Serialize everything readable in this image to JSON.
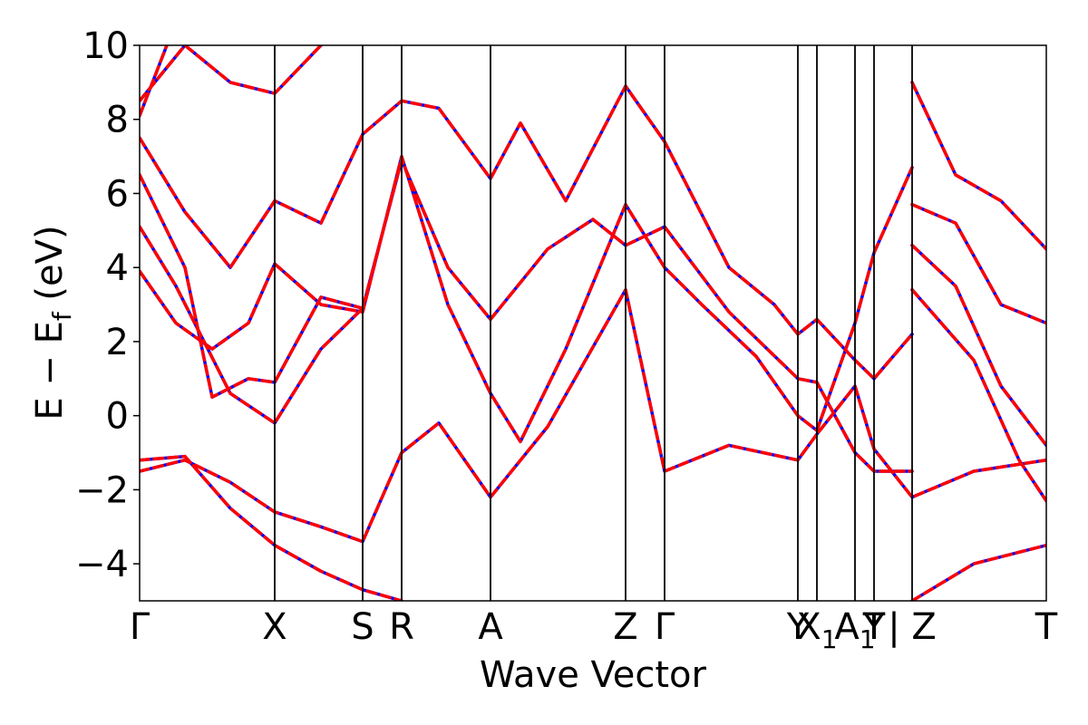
{
  "chart_data": {
    "type": "line",
    "xlabel": "Wave Vector",
    "ylabel": "E − E",
    "ylabel_sub": "f",
    "ylabel_unit": " (eV)",
    "ylim": [
      -5,
      10
    ],
    "yticks": [
      -4,
      -2,
      0,
      2,
      4,
      6,
      8,
      10
    ],
    "ytick_labels": [
      "−4",
      "−2",
      "0",
      "2",
      "4",
      "6",
      "8",
      "10"
    ],
    "xlim": [
      0,
      1
    ],
    "grid": false,
    "legend": "none",
    "kpoints": [
      {
        "pos": 0.0,
        "label": "Γ"
      },
      {
        "pos": 0.149,
        "label": "X"
      },
      {
        "pos": 0.246,
        "label": "S"
      },
      {
        "pos": 0.289,
        "label": "R"
      },
      {
        "pos": 0.387,
        "label": "A"
      },
      {
        "pos": 0.536,
        "label": "Z"
      },
      {
        "pos": 0.579,
        "label": "Γ"
      },
      {
        "pos": 0.726,
        "label": "Y"
      },
      {
        "pos": 0.747,
        "label": "X",
        "sub": "1"
      },
      {
        "pos": 0.789,
        "label": "A",
        "sub": "1"
      },
      {
        "pos": 0.81,
        "label": "T"
      },
      {
        "pos": 0.81,
        "label": "Y"
      },
      {
        "pos": 0.852,
        "label": "| Z"
      },
      {
        "pos": 1.0,
        "label": "T"
      }
    ],
    "series": [
      {
        "color": "#0000ff",
        "style": "solid",
        "width": 3.5,
        "bands": [
          [
            [
              0,
              -1.5
            ],
            [
              0.05,
              -1.2
            ],
            [
              0.1,
              -1.8
            ],
            [
              0.149,
              -2.6
            ],
            [
              0.2,
              -3.0
            ],
            [
              0.246,
              -3.4
            ],
            [
              0.289,
              -1.0
            ],
            [
              0.33,
              -0.2
            ],
            [
              0.387,
              -2.2
            ],
            [
              0.45,
              -0.3
            ],
            [
              0.536,
              3.4
            ],
            [
              0.579,
              -1.5
            ],
            [
              0.65,
              -0.8
            ],
            [
              0.726,
              -1.2
            ],
            [
              0.747,
              -0.5
            ],
            [
              0.789,
              0.8
            ],
            [
              0.81,
              -0.9
            ],
            [
              0.852,
              -2.2
            ],
            [
              0.92,
              -1.5
            ],
            [
              1.0,
              -1.2
            ]
          ],
          [
            [
              0,
              -1.2
            ],
            [
              0.05,
              -1.1
            ],
            [
              0.1,
              -2.5
            ],
            [
              0.149,
              -3.5
            ],
            [
              0.2,
              -4.2
            ],
            [
              0.246,
              -4.7
            ],
            [
              0.289,
              -5.0
            ]
          ],
          [
            [
              0,
              3.9
            ],
            [
              0.04,
              2.5
            ],
            [
              0.08,
              1.8
            ],
            [
              0.12,
              2.5
            ],
            [
              0.149,
              4.1
            ],
            [
              0.2,
              3.0
            ],
            [
              0.246,
              2.8
            ],
            [
              0.289,
              7.0
            ],
            [
              0.34,
              3.0
            ],
            [
              0.387,
              0.6
            ],
            [
              0.42,
              -0.7
            ],
            [
              0.47,
              1.8
            ],
            [
              0.536,
              5.7
            ],
            [
              0.579,
              4.0
            ],
            [
              0.62,
              3.0
            ],
            [
              0.68,
              1.6
            ],
            [
              0.726,
              0.0
            ],
            [
              0.747,
              -0.4
            ],
            [
              0.789,
              2.5
            ],
            [
              0.81,
              4.4
            ],
            [
              0.852,
              6.7
            ]
          ],
          [
            [
              0,
              5.1
            ],
            [
              0.04,
              3.5
            ],
            [
              0.1,
              0.6
            ],
            [
              0.149,
              -0.2
            ],
            [
              0.2,
              1.8
            ],
            [
              0.246,
              2.9
            ],
            [
              0.289,
              6.9
            ],
            [
              0.34,
              4.0
            ],
            [
              0.387,
              2.6
            ],
            [
              0.45,
              4.5
            ],
            [
              0.5,
              5.3
            ],
            [
              0.536,
              4.6
            ],
            [
              0.579,
              5.1
            ],
            [
              0.65,
              2.8
            ],
            [
              0.726,
              1.0
            ],
            [
              0.747,
              0.9
            ],
            [
              0.789,
              -1.0
            ],
            [
              0.81,
              -1.5
            ],
            [
              0.852,
              -1.5
            ]
          ],
          [
            [
              0,
              6.5
            ],
            [
              0.05,
              4.0
            ],
            [
              0.08,
              0.5
            ],
            [
              0.12,
              1.0
            ],
            [
              0.149,
              0.9
            ],
            [
              0.2,
              3.2
            ],
            [
              0.246,
              2.9
            ]
          ],
          [
            [
              0,
              7.5
            ],
            [
              0.05,
              5.5
            ],
            [
              0.1,
              4.0
            ],
            [
              0.149,
              5.8
            ],
            [
              0.2,
              5.2
            ],
            [
              0.246,
              7.6
            ],
            [
              0.289,
              8.5
            ],
            [
              0.33,
              8.3
            ],
            [
              0.387,
              6.4
            ],
            [
              0.42,
              7.9
            ],
            [
              0.47,
              5.8
            ],
            [
              0.536,
              8.9
            ],
            [
              0.579,
              7.4
            ],
            [
              0.65,
              4.0
            ],
            [
              0.7,
              3.0
            ],
            [
              0.726,
              2.2
            ],
            [
              0.747,
              2.6
            ],
            [
              0.789,
              1.5
            ],
            [
              0.81,
              1.0
            ],
            [
              0.852,
              2.2
            ]
          ],
          [
            [
              0,
              8.1
            ],
            [
              0.03,
              10.0
            ]
          ],
          [
            [
              0,
              8.5
            ],
            [
              0.05,
              10.0
            ],
            [
              0.1,
              9.0
            ],
            [
              0.149,
              8.7
            ],
            [
              0.2,
              10.0
            ]
          ],
          [
            [
              0.852,
              9.0
            ],
            [
              0.9,
              6.5
            ],
            [
              0.95,
              5.8
            ],
            [
              1.0,
              4.5
            ]
          ],
          [
            [
              0.852,
              5.7
            ],
            [
              0.9,
              5.2
            ],
            [
              0.95,
              3.0
            ],
            [
              1.0,
              2.5
            ]
          ],
          [
            [
              0.852,
              4.6
            ],
            [
              0.9,
              3.5
            ],
            [
              0.95,
              0.8
            ],
            [
              1.0,
              -0.8
            ]
          ],
          [
            [
              0.852,
              3.4
            ],
            [
              0.92,
              1.5
            ],
            [
              0.97,
              -1.2
            ],
            [
              1.0,
              -2.3
            ]
          ],
          [
            [
              0.852,
              -5.0
            ],
            [
              0.92,
              -4.0
            ],
            [
              1.0,
              -3.5
            ]
          ]
        ]
      },
      {
        "color": "#ff0000",
        "style": "dashed",
        "width": 3.5,
        "bands": [
          [
            [
              0,
              -1.5
            ],
            [
              0.05,
              -1.2
            ],
            [
              0.1,
              -1.8
            ],
            [
              0.149,
              -2.6
            ],
            [
              0.2,
              -3.0
            ],
            [
              0.246,
              -3.4
            ],
            [
              0.289,
              -1.0
            ],
            [
              0.33,
              -0.2
            ],
            [
              0.387,
              -2.2
            ],
            [
              0.45,
              -0.3
            ],
            [
              0.536,
              3.4
            ],
            [
              0.579,
              -1.5
            ],
            [
              0.65,
              -0.8
            ],
            [
              0.726,
              -1.2
            ],
            [
              0.747,
              -0.5
            ],
            [
              0.789,
              0.8
            ],
            [
              0.81,
              -0.9
            ],
            [
              0.852,
              -2.2
            ],
            [
              0.92,
              -1.5
            ],
            [
              1.0,
              -1.2
            ]
          ],
          [
            [
              0,
              -1.2
            ],
            [
              0.05,
              -1.1
            ],
            [
              0.1,
              -2.5
            ],
            [
              0.149,
              -3.5
            ],
            [
              0.2,
              -4.2
            ],
            [
              0.246,
              -4.7
            ],
            [
              0.289,
              -5.0
            ]
          ],
          [
            [
              0,
              3.9
            ],
            [
              0.04,
              2.5
            ],
            [
              0.08,
              1.8
            ],
            [
              0.12,
              2.5
            ],
            [
              0.149,
              4.1
            ],
            [
              0.2,
              3.0
            ],
            [
              0.246,
              2.8
            ],
            [
              0.289,
              7.0
            ],
            [
              0.34,
              3.0
            ],
            [
              0.387,
              0.6
            ],
            [
              0.42,
              -0.7
            ],
            [
              0.47,
              1.8
            ],
            [
              0.536,
              5.7
            ],
            [
              0.579,
              4.0
            ],
            [
              0.62,
              3.0
            ],
            [
              0.68,
              1.6
            ],
            [
              0.726,
              0.0
            ],
            [
              0.747,
              -0.4
            ],
            [
              0.789,
              2.5
            ],
            [
              0.81,
              4.4
            ],
            [
              0.852,
              6.7
            ]
          ],
          [
            [
              0,
              5.1
            ],
            [
              0.04,
              3.5
            ],
            [
              0.1,
              0.6
            ],
            [
              0.149,
              -0.2
            ],
            [
              0.2,
              1.8
            ],
            [
              0.246,
              2.9
            ],
            [
              0.289,
              6.9
            ],
            [
              0.34,
              4.0
            ],
            [
              0.387,
              2.6
            ],
            [
              0.45,
              4.5
            ],
            [
              0.5,
              5.3
            ],
            [
              0.536,
              4.6
            ],
            [
              0.579,
              5.1
            ],
            [
              0.65,
              2.8
            ],
            [
              0.726,
              1.0
            ],
            [
              0.747,
              0.9
            ],
            [
              0.789,
              -1.0
            ],
            [
              0.81,
              -1.5
            ],
            [
              0.852,
              -1.5
            ]
          ],
          [
            [
              0,
              6.5
            ],
            [
              0.05,
              4.0
            ],
            [
              0.08,
              0.5
            ],
            [
              0.12,
              1.0
            ],
            [
              0.149,
              0.9
            ],
            [
              0.2,
              3.2
            ],
            [
              0.246,
              2.9
            ]
          ],
          [
            [
              0,
              7.5
            ],
            [
              0.05,
              5.5
            ],
            [
              0.1,
              4.0
            ],
            [
              0.149,
              5.8
            ],
            [
              0.2,
              5.2
            ],
            [
              0.246,
              7.6
            ],
            [
              0.289,
              8.5
            ],
            [
              0.33,
              8.3
            ],
            [
              0.387,
              6.4
            ],
            [
              0.42,
              7.9
            ],
            [
              0.47,
              5.8
            ],
            [
              0.536,
              8.9
            ],
            [
              0.579,
              7.4
            ],
            [
              0.65,
              4.0
            ],
            [
              0.7,
              3.0
            ],
            [
              0.726,
              2.2
            ],
            [
              0.747,
              2.6
            ],
            [
              0.789,
              1.5
            ],
            [
              0.81,
              1.0
            ],
            [
              0.852,
              2.2
            ]
          ],
          [
            [
              0,
              8.1
            ],
            [
              0.03,
              10.0
            ]
          ],
          [
            [
              0,
              8.5
            ],
            [
              0.05,
              10.0
            ],
            [
              0.1,
              9.0
            ],
            [
              0.149,
              8.7
            ],
            [
              0.2,
              10.0
            ]
          ],
          [
            [
              0.852,
              9.0
            ],
            [
              0.9,
              6.5
            ],
            [
              0.95,
              5.8
            ],
            [
              1.0,
              4.5
            ]
          ],
          [
            [
              0.852,
              5.7
            ],
            [
              0.9,
              5.2
            ],
            [
              0.95,
              3.0
            ],
            [
              1.0,
              2.5
            ]
          ],
          [
            [
              0.852,
              4.6
            ],
            [
              0.9,
              3.5
            ],
            [
              0.95,
              0.8
            ],
            [
              1.0,
              -0.8
            ]
          ],
          [
            [
              0.852,
              3.4
            ],
            [
              0.92,
              1.5
            ],
            [
              0.97,
              -1.2
            ],
            [
              1.0,
              -2.3
            ]
          ],
          [
            [
              0.852,
              -5.0
            ],
            [
              0.92,
              -4.0
            ],
            [
              1.0,
              -3.5
            ]
          ]
        ]
      }
    ]
  }
}
